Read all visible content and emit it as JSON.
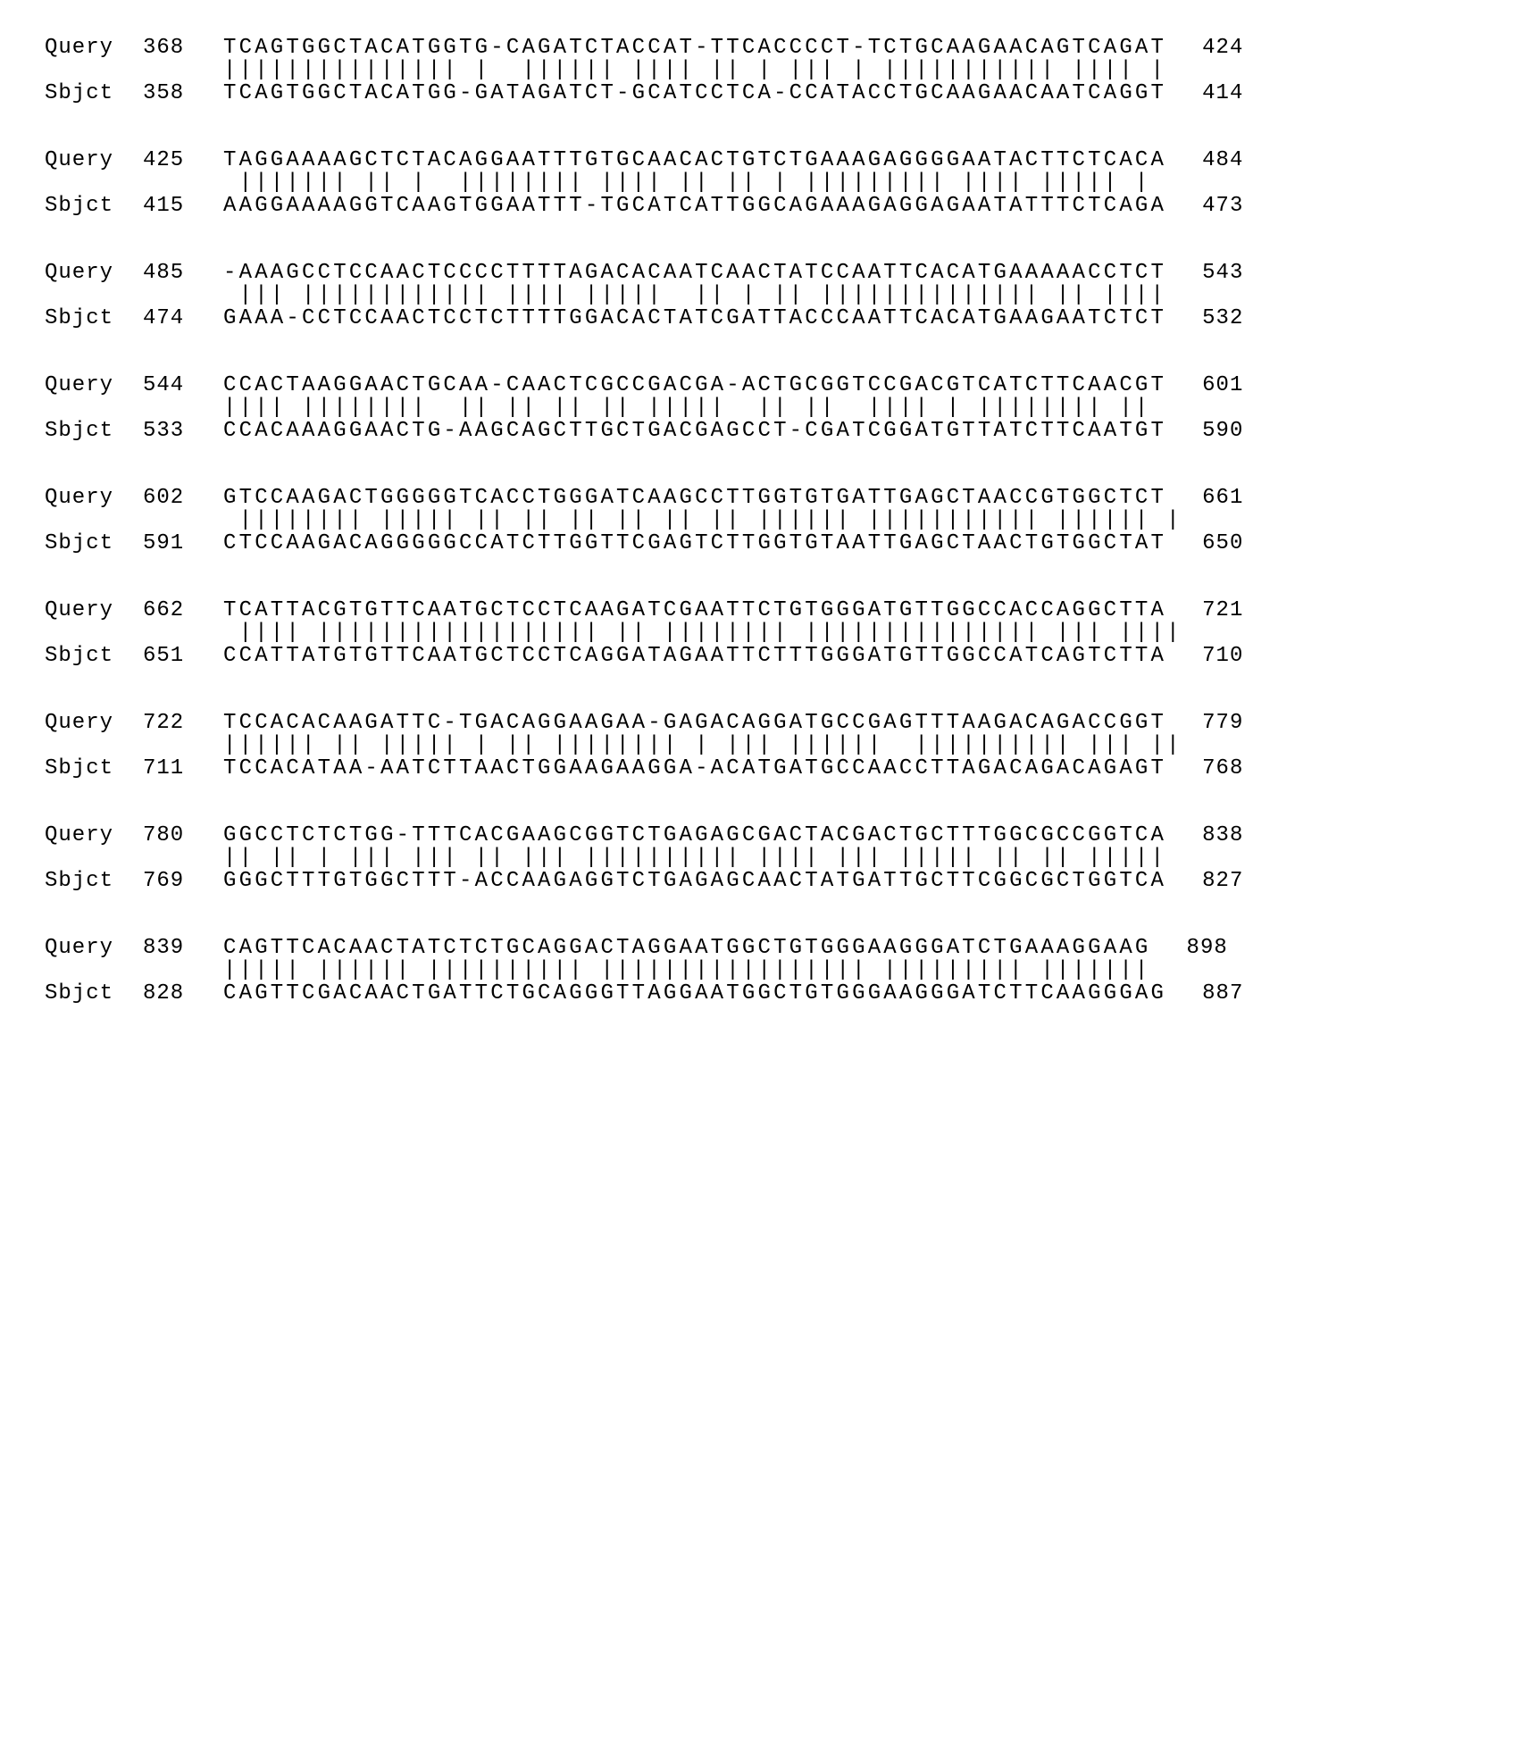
{
  "styling": {
    "background_color": "#ffffff",
    "text_color": "#000000",
    "font_family": "Courier New, Courier, monospace",
    "sequence_fontsize": 24,
    "label_fontsize": 24,
    "sequence_letter_spacing": 3.2,
    "block_gap": 48,
    "label_width": 110,
    "pos_start_width": 90,
    "pos_end_padding_left": 40
  },
  "labels": {
    "query": "Query",
    "sbjct": "Sbjct"
  },
  "blocks": [
    {
      "query": {
        "start": "368",
        "seq": "TCAGTGGCTACATGGTG-CAGATCTACCAT-TTCACCCCT-TCTGCAAGAACAGTCAGAT",
        "end": "424"
      },
      "match": "||||||||||||||| |  |||||| |||| || | ||| | ||||||||||| |||| |",
      "sbjct": {
        "start": "358",
        "seq": "TCAGTGGCTACATGG-GATAGATCT-GCATCCTCA-CCATACCTGCAAGAACAATCAGGT",
        "end": "414"
      }
    },
    {
      "query": {
        "start": "425",
        "seq": "TAGGAAAAGCTCTACAGGAATTTGTGCAACACTGTCTGAAAGAGGGGAATACTTCTCACA",
        "end": "484"
      },
      "match": " ||||||| || |  |||||||| |||| || || | ||||||||| |||| ||||| |",
      "sbjct": {
        "start": "415",
        "seq": "AAGGAAAAGGTCAAGTGGAATTT-TGCATCATTGGCAGAAAGAGGAGAATATTTCTCAGA",
        "end": "473"
      }
    },
    {
      "query": {
        "start": "485",
        "seq": "-AAAGCCTCCAACTCCCCTTTTAGACACAATCAACTATCCAATTCACATGAAAAACCTCT",
        "end": "543"
      },
      "match": " ||| |||||||||||| |||| |||||  || | || |||||||||||||| || ||||",
      "sbjct": {
        "start": "474",
        "seq": "GAAA-CCTCCAACTCCTCTTTTGGACACTATCGATTACCCAATTCACATGAAGAATCTCT",
        "end": "532"
      }
    },
    {
      "query": {
        "start": "544",
        "seq": "CCACTAAGGAACTGCAA-CAACTCGCCGACGA-ACTGCGGTCCGACGTCATCTTCAACGT",
        "end": "601"
      },
      "match": "|||| ||||||||  || || || || |||||  || ||  |||| | |||||||| ||",
      "sbjct": {
        "start": "533",
        "seq": "CCACAAAGGAACTG-AAGCAGCTTGCTGACGAGCCT-CGATCGGATGTTATCTTCAATGT",
        "end": "590"
      }
    },
    {
      "query": {
        "start": "602",
        "seq": "GTCCAAGACTGGGGGTCACCTGGGATCAAGCCTTGGTGTGATTGAGCTAACCGTGGCTCT",
        "end": "661"
      },
      "match": " |||||||| ||||| || || || || || || |||||| ||||||||||| |||||| |",
      "sbjct": {
        "start": "591",
        "seq": "CTCCAAGACAGGGGGCCATCTTGGTTCGAGTCTTGGTGTAATTGAGCTAACTGTGGCTAT",
        "end": "650"
      }
    },
    {
      "query": {
        "start": "662",
        "seq": "TCATTACGTGTTCAATGCTCCTCAAGATCGAATTCTGTGGGATGTTGGCCACCAGGCTTA",
        "end": "721"
      },
      "match": " |||| |||||||||||||||||| || |||||||| ||||||||||||||| ||| ||||",
      "sbjct": {
        "start": "651",
        "seq": "CCATTATGTGTTCAATGCTCCTCAGGATAGAATTCTTTGGGATGTTGGCCATCAGTCTTA",
        "end": "710"
      }
    },
    {
      "query": {
        "start": "722",
        "seq": "TCCACACAAGATTC-TGACAGGAAGAA-GAGACAGGATGCCGAGTTTAAGACAGACCGGT",
        "end": "779"
      },
      "match": "|||||| || ||||| | || |||||||| | ||| ||||||  |||||||||| ||| ||",
      "sbjct": {
        "start": "711",
        "seq": "TCCACATAA-AATCTTAACTGGAAGAAGGA-ACATGATGCCAACCTTAGACAGACAGAGT",
        "end": "768"
      }
    },
    {
      "query": {
        "start": "780",
        "seq": "GGCCTCTCTGG-TTTCACGAAGCGGTCTGAGAGCGACTACGACTGCTTTGGCGCCGGTCA",
        "end": "838"
      },
      "match": "|| || | ||| ||| || ||| |||||||||| |||| ||| ||||| || || |||||",
      "sbjct": {
        "start": "769",
        "seq": "GGGCTTTGTGGCTTT-ACCAAGAGGTCTGAGAGCAACTATGATTGCTTCGGCGCTGGTCA",
        "end": "827"
      }
    },
    {
      "query": {
        "start": "839",
        "seq": "CAGTTCACAACTATCTCTGCAGGACTAGGAATGGCTGTGGGAAGGGATCTGAAAGGAAG",
        "end": "898"
      },
      "match": "||||| |||||| |||||||||| ||||||||||||||||| ||||||||| |||||||",
      "sbjct": {
        "start": "828",
        "seq": "CAGTTCGACAACTGATTCTGCAGGGTTAGGAATGGCTGTGGGAAGGGATCTTCAAGGGAG",
        "end": "887"
      }
    }
  ]
}
